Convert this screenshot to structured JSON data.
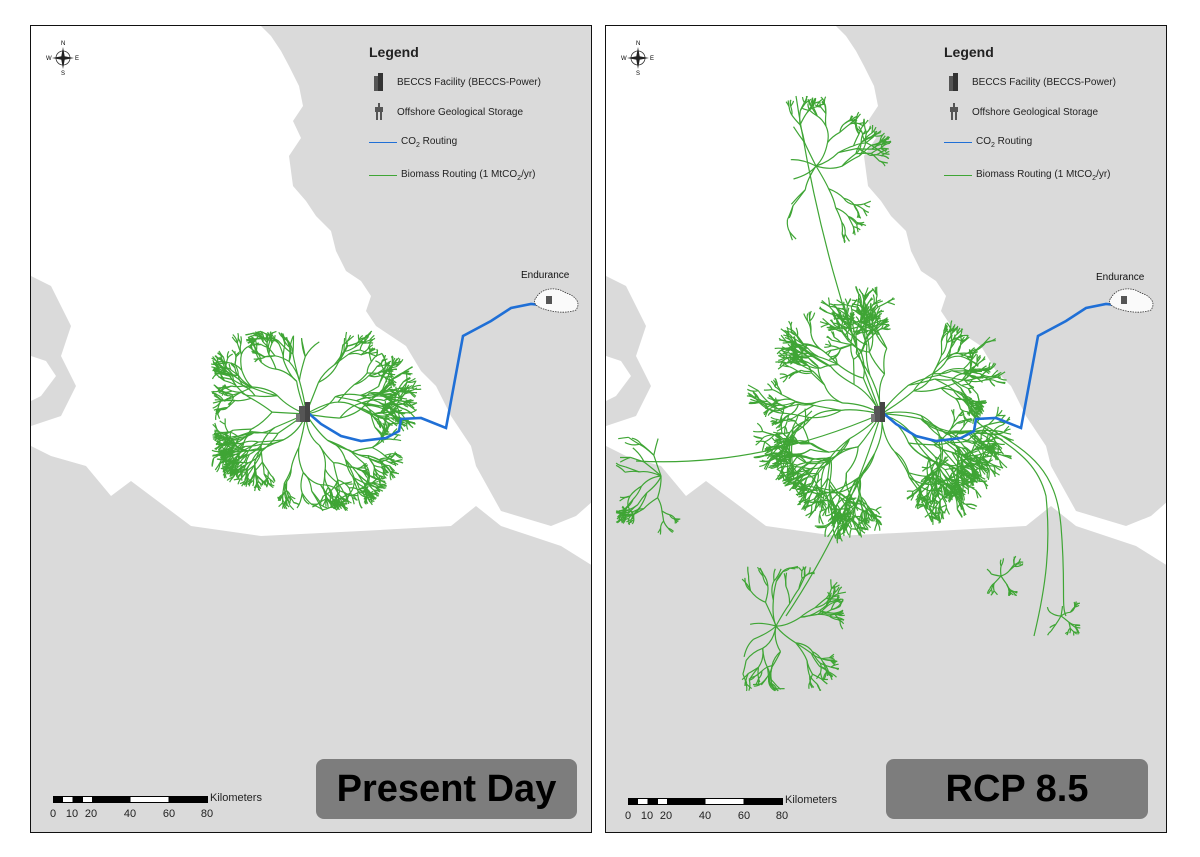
{
  "panels": [
    {
      "id": "present",
      "label": "Present Day",
      "legend": {
        "title": "Legend",
        "items": [
          {
            "icon": "beccs-facility-icon",
            "text": "BECCS Facility (BECCS-Power)"
          },
          {
            "icon": "offshore-storage-icon",
            "text": "Offshore Geological Storage"
          },
          {
            "icon": "co2-routing-line",
            "text_main": "CO",
            "text_sub": "2",
            "text_tail": " Routing",
            "color": "#1f6fd6"
          },
          {
            "icon": "biomass-routing-line",
            "text_main": "Biomass Routing (1 MtCO",
            "text_sub": "2",
            "text_tail": "/yr)",
            "color": "#3fa535"
          }
        ]
      },
      "storage_site": "Endurance",
      "compass": {
        "n": "N",
        "s": "S",
        "e": "E",
        "w": "W"
      },
      "scale": {
        "ticks": [
          "0",
          "10",
          "20",
          "40",
          "60",
          "80"
        ],
        "unit": "Kilometers"
      }
    },
    {
      "id": "rcp85",
      "label": "RCP 8.5",
      "legend": {
        "title": "Legend",
        "items": [
          {
            "icon": "beccs-facility-icon",
            "text": "BECCS Facility (BECCS-Power)"
          },
          {
            "icon": "offshore-storage-icon",
            "text": "Offshore Geological Storage"
          },
          {
            "icon": "co2-routing-line",
            "text_main": "CO",
            "text_sub": "2",
            "text_tail": " Routing",
            "color": "#1f6fd6"
          },
          {
            "icon": "biomass-routing-line",
            "text_main": "Biomass Routing (1 MtCO",
            "text_sub": "2",
            "text_tail": "/yr)",
            "color": "#3fa535"
          }
        ]
      },
      "storage_site": "Endurance",
      "compass": {
        "n": "N",
        "s": "S",
        "e": "E",
        "w": "W"
      },
      "scale": {
        "ticks": [
          "0",
          "10",
          "20",
          "40",
          "60",
          "80"
        ],
        "unit": "Kilometers"
      }
    }
  ],
  "colors": {
    "land": "#dadada",
    "sea": "#ffffff",
    "co2": "#1f6fd6",
    "biomass": "#3fa535",
    "label_box": "#7d7d7d"
  }
}
